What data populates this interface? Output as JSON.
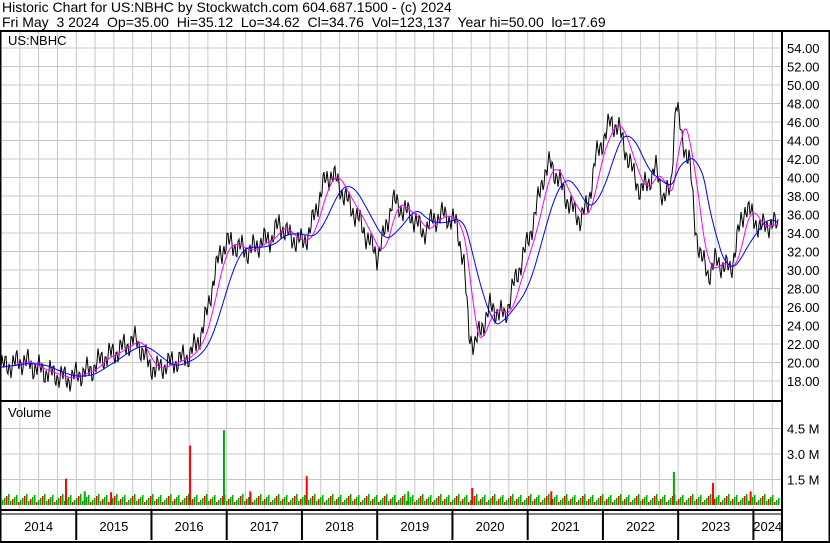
{
  "header": {
    "title": "Historic Chart for US:NBHC by Stockwatch.com 604.687.1500 - (c) 2024",
    "quote": "Fri May  3 2024  Op=35.00  Hi=35.12  Lo=34.62  Cl=34.76  Vol=123,137  Year hi=50.00  lo=17.69"
  },
  "chart_data": [
    {
      "type": "line",
      "title": "US:NBHC",
      "ylim": [
        17,
        55
      ],
      "yticks": [
        "54.00",
        "52.00",
        "50.00",
        "48.00",
        "46.00",
        "44.00",
        "42.00",
        "40.00",
        "38.00",
        "36.00",
        "34.00",
        "32.00",
        "30.00",
        "28.00",
        "26.00",
        "24.00",
        "22.00",
        "20.00",
        "18.00"
      ],
      "xticks": [
        "2014",
        "2015",
        "2016",
        "2017",
        "2018",
        "2019",
        "2020",
        "2021",
        "2022",
        "2023",
        "2024"
      ],
      "xlim": [
        2014.0,
        2024.38
      ],
      "grid": true,
      "colors": {
        "price": "#000000",
        "ma_short": "#ff00ff",
        "ma_long": "#0000ff"
      },
      "series": [
        {
          "x": [
            2014.0,
            2014.15,
            2014.3,
            2014.45,
            2014.6,
            2014.75,
            2014.9,
            2015.05,
            2015.2,
            2015.35,
            2015.5,
            2015.65,
            2015.8,
            2015.95,
            2016.05,
            2016.2,
            2016.35,
            2016.5,
            2016.6,
            2016.7,
            2016.8,
            2016.9,
            2017.0,
            2017.15,
            2017.3,
            2017.45,
            2017.6,
            2017.7,
            2017.85,
            2018.0,
            2018.1,
            2018.2,
            2018.3,
            2018.4,
            2018.5,
            2018.6,
            2018.75,
            2018.9,
            2019.0,
            2019.1,
            2019.2,
            2019.35,
            2019.5,
            2019.6,
            2019.75,
            2019.9,
            2020.05,
            2020.15,
            2020.22,
            2020.3,
            2020.4,
            2020.5,
            2020.6,
            2020.7,
            2020.8,
            2020.9,
            2021.0,
            2021.1,
            2021.2,
            2021.3,
            2021.4,
            2021.5,
            2021.6,
            2021.7,
            2021.8,
            2021.9,
            2022.0,
            2022.1,
            2022.2,
            2022.3,
            2022.4,
            2022.5,
            2022.6,
            2022.7,
            2022.8,
            2022.9,
            2022.97,
            2023.05,
            2023.15,
            2023.22,
            2023.3,
            2023.4,
            2023.5,
            2023.6,
            2023.7,
            2023.8,
            2023.9,
            2024.0,
            2024.1,
            2024.2,
            2024.34
          ],
          "values": [
            19.5,
            19.8,
            20.2,
            19.5,
            19.0,
            18.6,
            18.2,
            18.8,
            19.2,
            20.5,
            21.0,
            21.8,
            22.5,
            20.0,
            19.2,
            19.8,
            20.2,
            20.8,
            22.0,
            24.0,
            28.0,
            31.5,
            33.0,
            32.5,
            32.0,
            33.0,
            33.5,
            35.0,
            33.5,
            33.0,
            34.0,
            37.0,
            39.5,
            40.5,
            39.0,
            37.5,
            35.5,
            33.0,
            31.5,
            34.0,
            37.5,
            36.5,
            35.5,
            34.0,
            35.5,
            36.0,
            35.0,
            31.0,
            23.0,
            22.0,
            24.0,
            26.0,
            25.5,
            25.0,
            28.0,
            30.5,
            33.0,
            36.0,
            40.0,
            41.5,
            40.0,
            38.0,
            36.5,
            35.5,
            37.0,
            42.0,
            44.0,
            46.0,
            45.5,
            43.0,
            40.5,
            38.5,
            39.5,
            41.0,
            38.0,
            38.5,
            48.5,
            44.0,
            42.0,
            35.0,
            31.5,
            29.5,
            31.0,
            30.5,
            30.0,
            34.0,
            37.0,
            35.5,
            34.5,
            35.0,
            34.76
          ]
        }
      ]
    },
    {
      "type": "bar",
      "title": "Volume",
      "yticks": [
        "4.5 M",
        "3.0 M",
        "1.5 M"
      ],
      "ylim": [
        0,
        5.5
      ],
      "unit": "M",
      "colors": {
        "up": "#00aa00",
        "down": "#ff0000"
      },
      "spikes": {
        "x": [
          2014.85,
          2015.1,
          2015.45,
          2016.5,
          2016.95,
          2017.3,
          2018.05,
          2019.4,
          2020.25,
          2021.3,
          2022.93,
          2023.45,
          2023.95
        ],
        "values": [
          1.55,
          0.8,
          0.75,
          3.5,
          4.4,
          0.8,
          1.7,
          0.8,
          1.0,
          0.8,
          1.95,
          1.3,
          0.8
        ]
      }
    }
  ]
}
